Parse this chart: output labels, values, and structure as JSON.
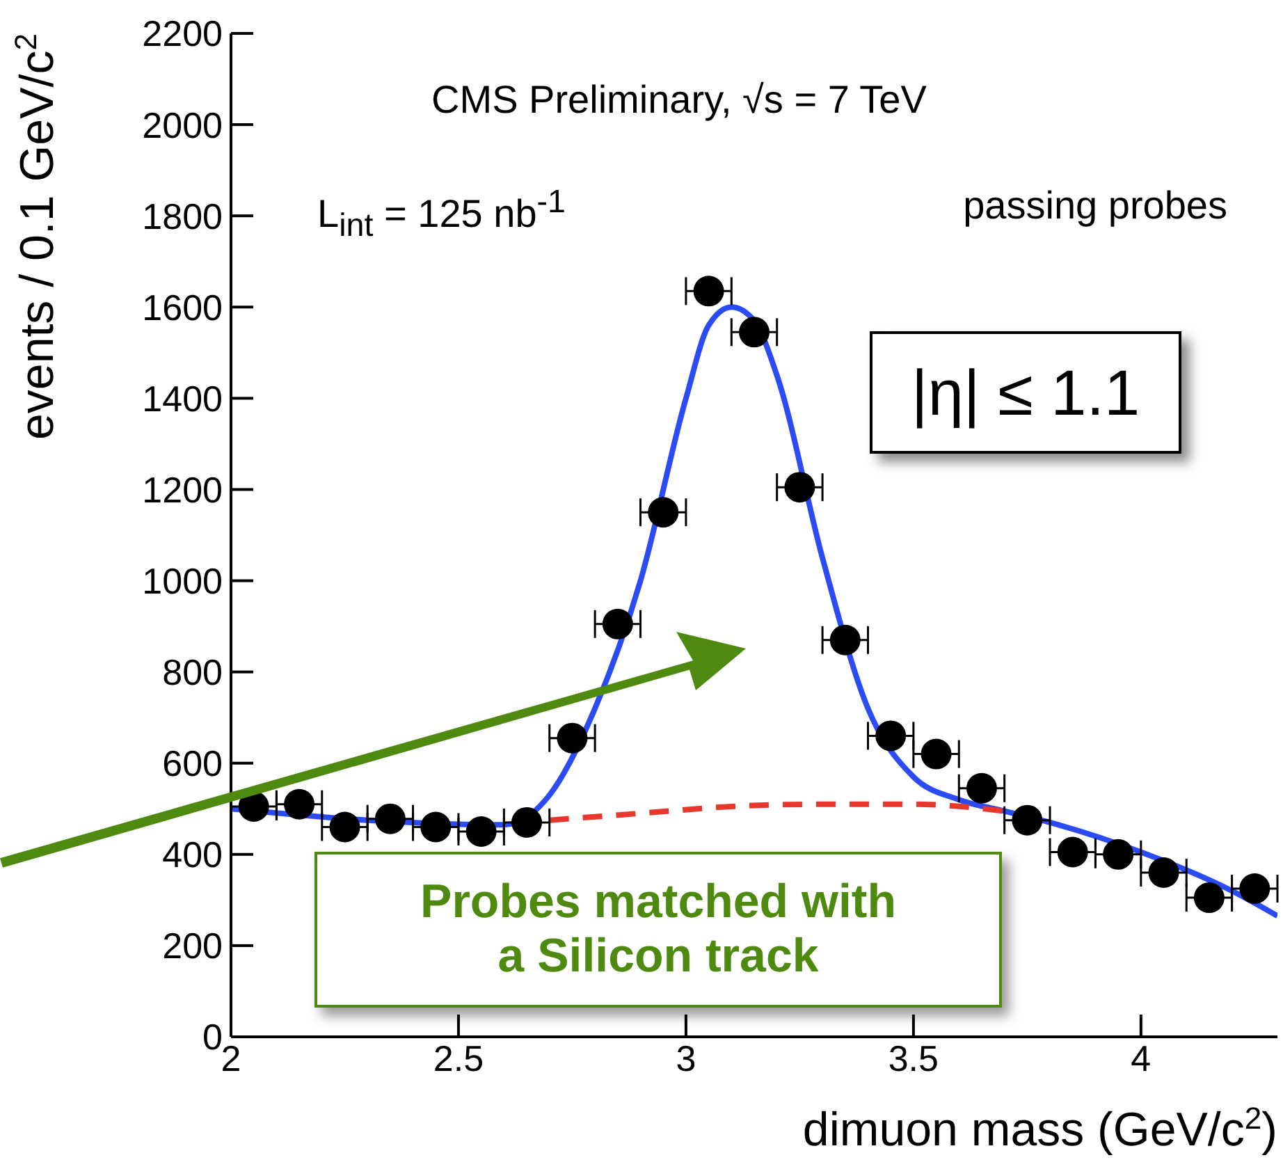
{
  "chart_data": {
    "type": "scatter",
    "xlabel": "dimuon mass (GeV/c$^{2}$)",
    "ylabel": "events / 0.1 GeV/c$^{2}$",
    "xlim": [
      2,
      4.3
    ],
    "xticks": [
      2,
      2.5,
      3,
      3.5,
      4
    ],
    "ylim": [
      0,
      2200
    ],
    "yticks": [
      0,
      200,
      400,
      600,
      800,
      1000,
      1200,
      1400,
      1600,
      1800,
      2000,
      2200
    ],
    "grid": false,
    "marker": "circle",
    "series": [
      {
        "color": "#000000",
        "x": [
          2.05,
          2.15,
          2.25,
          2.35,
          2.45,
          2.55,
          2.65,
          2.75,
          2.85,
          2.95,
          3.05,
          3.15,
          3.25,
          3.35,
          3.45,
          3.55,
          3.65,
          3.75,
          3.85,
          3.95,
          4.05,
          4.15,
          4.25
        ],
        "values": [
          505,
          510,
          460,
          478,
          460,
          450,
          470,
          655,
          905,
          1150,
          1635,
          1545,
          1205,
          870,
          660,
          620,
          545,
          475,
          405,
          400,
          360,
          305,
          325
        ],
        "xerrors": [
          0.05,
          0.05,
          0.05,
          0.05,
          0.05,
          0.05,
          0.05,
          0.05,
          0.05,
          0.05,
          0.05,
          0.05,
          0.05,
          0.05,
          0.05,
          0.05,
          0.05,
          0.05,
          0.05,
          0.05,
          0.05,
          0.05,
          0.05
        ]
      },
      {
        "type": "line",
        "color": "#2b4cf5",
        "line_style": "solid",
        "marker": "none",
        "x": [
          2.0,
          2.3,
          2.6,
          2.7,
          2.8,
          2.9,
          3.0,
          3.05,
          3.1,
          3.15,
          3.2,
          3.3,
          3.4,
          3.5,
          3.6,
          3.7,
          3.8,
          4.0,
          4.2,
          4.3
        ],
        "values": [
          500,
          475,
          465,
          530,
          720,
          1000,
          1400,
          1560,
          1600,
          1570,
          1450,
          1050,
          720,
          570,
          520,
          495,
          470,
          405,
          320,
          265
        ]
      },
      {
        "type": "line",
        "color": "#e8382e",
        "line_style": "dashed",
        "marker": "none",
        "x": [
          2.7,
          2.9,
          3.1,
          3.3,
          3.5,
          3.7
        ],
        "values": [
          475,
          490,
          505,
          510,
          510,
          495
        ]
      }
    ],
    "annotations": [
      "CMS Preliminary, √s = 7 TeV",
      "L$_{int}$ = 125 nb$^{-1}$",
      "passing probes",
      "|η| ≤ 1.1",
      "Probes matched with a Silicon track"
    ]
  }
}
